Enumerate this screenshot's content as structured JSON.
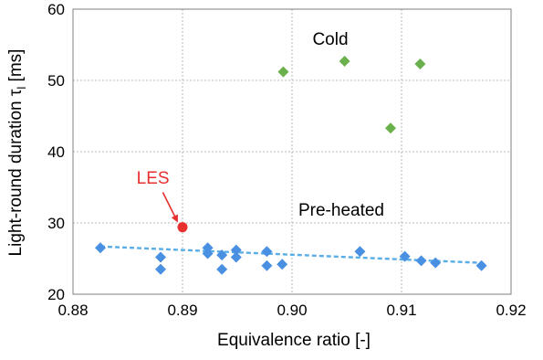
{
  "chart_data": {
    "type": "scatter",
    "title": "",
    "xlabel": "Equivalence ratio [-]",
    "ylabel": "Light-round duration τ",
    "ylabel_subscript": "l",
    "ylabel_unit": " [ms]",
    "xlim": [
      0.88,
      0.92
    ],
    "ylim": [
      20,
      60
    ],
    "xticks": [
      "0.88",
      "0.89",
      "0.90",
      "0.91",
      "0.92"
    ],
    "yticks": [
      "20",
      "30",
      "40",
      "50",
      "60"
    ],
    "grid": true,
    "series": [
      {
        "name": "Cold",
        "marker": "diamond",
        "color": "#6ab04c",
        "points": [
          {
            "x": 0.8992,
            "y": 51.2
          },
          {
            "x": 0.9048,
            "y": 52.7
          },
          {
            "x": 0.9117,
            "y": 52.3
          },
          {
            "x": 0.909,
            "y": 43.3
          }
        ]
      },
      {
        "name": "Pre-heated",
        "marker": "diamond",
        "color": "#4a90e2",
        "points": [
          {
            "x": 0.8825,
            "y": 26.5
          },
          {
            "x": 0.888,
            "y": 25.2
          },
          {
            "x": 0.888,
            "y": 23.5
          },
          {
            "x": 0.8923,
            "y": 26.5
          },
          {
            "x": 0.8923,
            "y": 25.7
          },
          {
            "x": 0.8936,
            "y": 25.5
          },
          {
            "x": 0.8936,
            "y": 23.5
          },
          {
            "x": 0.8949,
            "y": 26.2
          },
          {
            "x": 0.8949,
            "y": 25.2
          },
          {
            "x": 0.8977,
            "y": 26.0
          },
          {
            "x": 0.8977,
            "y": 24.0
          },
          {
            "x": 0.8991,
            "y": 24.2
          },
          {
            "x": 0.9062,
            "y": 26.0
          },
          {
            "x": 0.9103,
            "y": 25.3
          },
          {
            "x": 0.9118,
            "y": 24.7
          },
          {
            "x": 0.9131,
            "y": 24.4
          },
          {
            "x": 0.9173,
            "y": 24.0
          }
        ]
      },
      {
        "name": "LES",
        "marker": "circle",
        "color": "#e8302f",
        "points": [
          {
            "x": 0.89,
            "y": 29.4
          }
        ]
      }
    ],
    "trendline": {
      "series": "Pre-heated",
      "style": "dashed",
      "color": "#5aaee8",
      "from": {
        "x": 0.8825,
        "y": 26.7
      },
      "to": {
        "x": 0.9173,
        "y": 24.4
      }
    },
    "annotations": [
      {
        "text": "Cold",
        "x": 0.9035,
        "y": 55.0,
        "color": "#000000"
      },
      {
        "text": "Pre-heated",
        "x": 0.9045,
        "y": 31.0,
        "color": "#000000"
      },
      {
        "text": "LES",
        "x": 0.8873,
        "y": 35.5,
        "color": "#e8302f"
      }
    ],
    "les_arrow": {
      "from": {
        "x": 0.8882,
        "y": 34.3
      },
      "to": {
        "x": 0.8895,
        "y": 30.3
      },
      "color": "#e8302f"
    }
  }
}
